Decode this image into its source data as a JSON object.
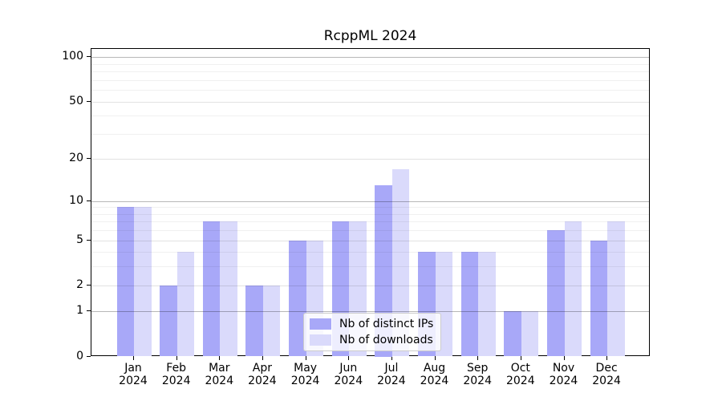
{
  "title": "RcppML 2024",
  "chart_data": {
    "type": "bar",
    "title": "RcppML 2024",
    "categories": [
      "Jan",
      "Feb",
      "Mar",
      "Apr",
      "May",
      "Jun",
      "Jul",
      "Aug",
      "Sep",
      "Oct",
      "Nov",
      "Dec"
    ],
    "year_label": "2024",
    "series": [
      {
        "name": "Nb of distinct IPs",
        "color": "#a8a8f8",
        "values": [
          9,
          2,
          7,
          2,
          5,
          7,
          13,
          4,
          4,
          1,
          6,
          5
        ]
      },
      {
        "name": "Nb of downloads",
        "color": "#dadafb",
        "values": [
          9,
          4,
          7,
          2,
          5,
          7,
          17,
          4,
          4,
          1,
          7,
          7
        ]
      }
    ],
    "yscale": "log1p",
    "y_ticks": [
      0,
      1,
      2,
      5,
      10,
      20,
      50,
      100
    ],
    "y_decade_ticks": [
      1,
      10,
      100
    ],
    "y_minor_ticks": [
      3,
      4,
      6,
      7,
      8,
      9,
      30,
      40,
      60,
      70,
      80,
      90
    ],
    "ylim": [
      0,
      113.6
    ],
    "xlabel": "",
    "ylabel": "",
    "grid": true,
    "legend_position": "lower center"
  }
}
